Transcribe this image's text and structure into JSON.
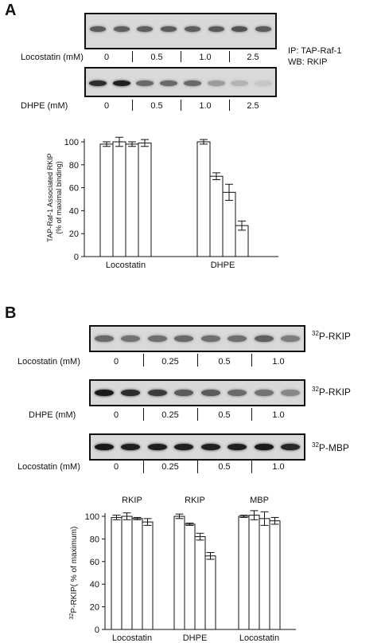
{
  "panel_a": {
    "letter": "A",
    "blot1": {
      "row_label": "Locostatin (mM)",
      "concentrations": [
        "0",
        "0.5",
        "1.0",
        "2.5"
      ],
      "band_intensity": [
        0.62,
        0.6,
        0.6,
        0.62,
        0.6,
        0.62,
        0.66,
        0.62
      ]
    },
    "ip_label": "IP: TAP-Raf-1",
    "wb_label": "WB: RKIP",
    "blot2": {
      "row_label": "DHPE (mM)",
      "concentrations": [
        "0",
        "0.5",
        "1.0",
        "2.5"
      ],
      "band_intensity": [
        0.85,
        0.92,
        0.55,
        0.55,
        0.55,
        0.3,
        0.18,
        0.08
      ]
    }
  },
  "panel_b": {
    "letter": "B",
    "blots": [
      {
        "right_label_sup": "32",
        "right_label": "P-RKIP",
        "row_label": "Locostatin (mM)",
        "concentrations": [
          "0",
          "0.25",
          "0.5",
          "1.0"
        ],
        "band_intensity": [
          0.55,
          0.5,
          0.52,
          0.55,
          0.52,
          0.52,
          0.6,
          0.45
        ]
      },
      {
        "right_label_sup": "32",
        "right_label": "P-RKIP",
        "row_label": "DHPE (mM)",
        "concentrations": [
          "0",
          "0.25",
          "0.5",
          "1.0"
        ],
        "band_intensity": [
          0.95,
          0.85,
          0.78,
          0.62,
          0.62,
          0.55,
          0.5,
          0.4
        ]
      },
      {
        "right_label_sup": "32",
        "right_label": "P-MBP",
        "row_label": "Locostatin (mM)",
        "concentrations": [
          "0",
          "0.25",
          "0.5",
          "1.0"
        ],
        "band_intensity": [
          0.95,
          0.92,
          0.92,
          0.92,
          0.92,
          0.92,
          0.95,
          0.88
        ]
      }
    ]
  },
  "chart_data": [
    {
      "type": "bar",
      "ylabel_line1": "TAP-Raf-1 Associated RKIP",
      "ylabel_line2": "(% of maximal binding)",
      "ylim": [
        0,
        100
      ],
      "yticks": [
        "0",
        "20",
        "40",
        "60",
        "80",
        "100"
      ],
      "tick_values": [
        0,
        20,
        40,
        60,
        80,
        100
      ],
      "groups": [
        {
          "label": "Locostatin",
          "values": [
            98,
            100,
            98,
            99
          ],
          "errors": [
            2,
            4,
            2,
            3
          ]
        },
        {
          "label": "DHPE",
          "values": [
            100,
            70,
            56,
            27
          ],
          "errors": [
            2,
            3,
            7,
            4
          ]
        }
      ]
    },
    {
      "type": "bar",
      "ylabel_sup": "32",
      "ylabel": "P-RKIP( % of maximum)",
      "ylim": [
        0,
        100
      ],
      "yticks": [
        "0",
        "20",
        "40",
        "60",
        "80",
        "100"
      ],
      "tick_values": [
        0,
        20,
        40,
        60,
        80,
        100
      ],
      "groups": [
        {
          "top_label": "RKIP",
          "label": "Locostatin",
          "values": [
            99,
            100,
            98,
            95
          ],
          "errors": [
            2,
            3,
            1,
            3
          ]
        },
        {
          "top_label": "RKIP",
          "label": "DHPE",
          "values": [
            100,
            93,
            82,
            65
          ],
          "errors": [
            2,
            1,
            3,
            3
          ]
        },
        {
          "top_label": "MBP",
          "label": "Locostatin",
          "values": [
            100,
            101,
            98,
            96
          ],
          "errors": [
            1,
            4,
            6,
            3
          ]
        }
      ]
    }
  ]
}
